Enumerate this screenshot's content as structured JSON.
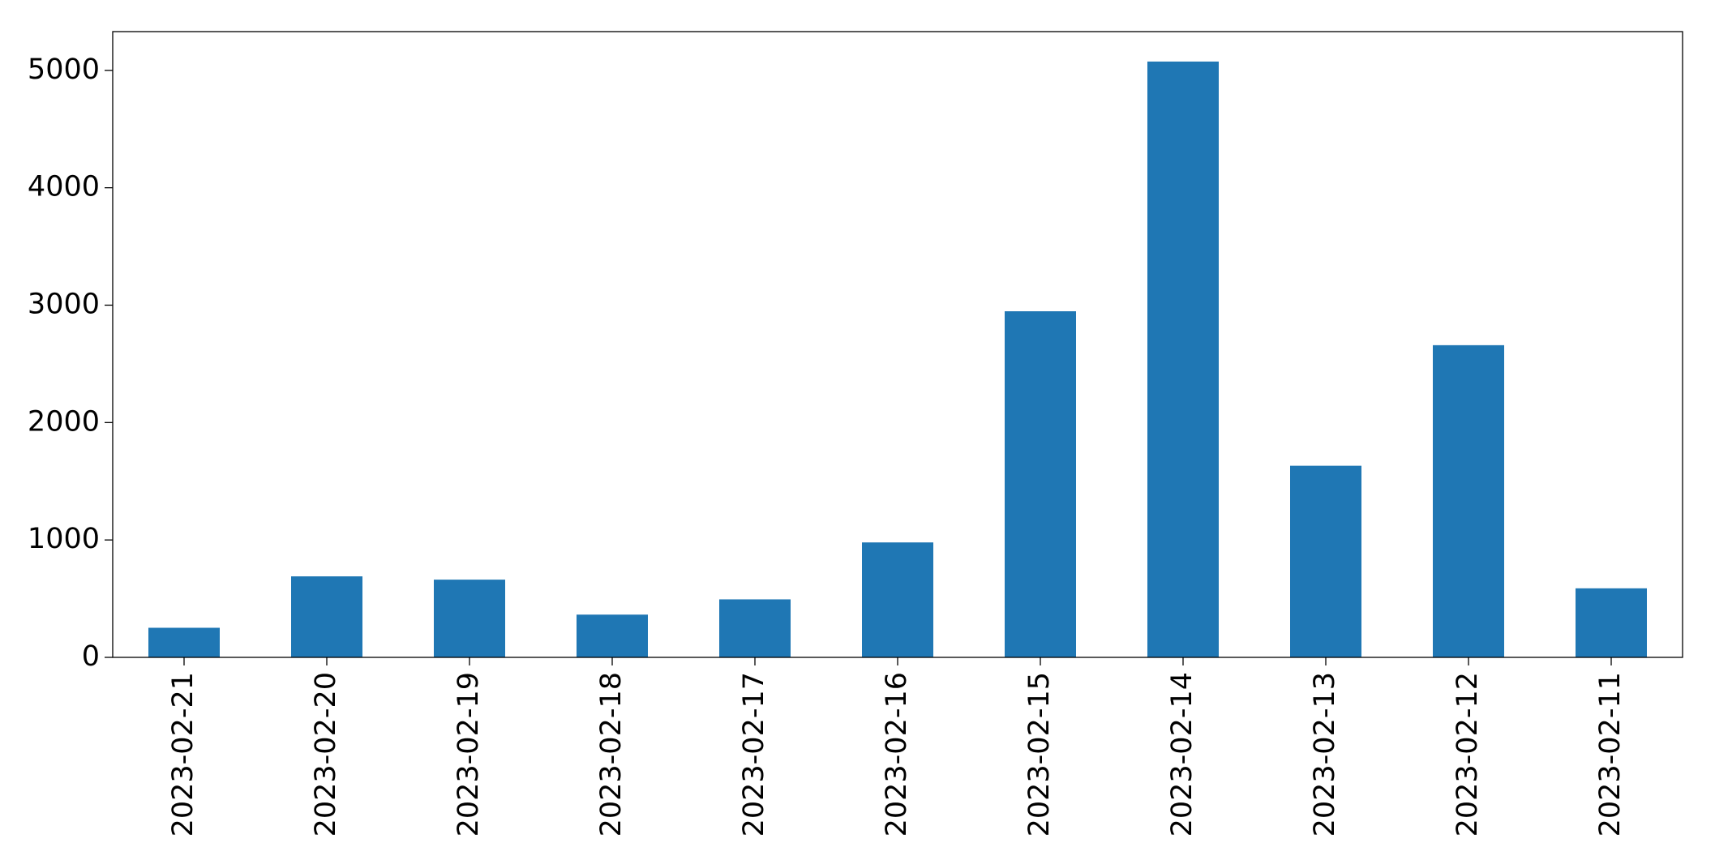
{
  "chart_data": {
    "type": "bar",
    "categories": [
      "2023-02-21",
      "2023-02-20",
      "2023-02-19",
      "2023-02-18",
      "2023-02-17",
      "2023-02-16",
      "2023-02-15",
      "2023-02-14",
      "2023-02-13",
      "2023-02-12",
      "2023-02-11"
    ],
    "values": [
      252,
      690,
      662,
      364,
      494,
      979,
      2948,
      5075,
      1632,
      2659,
      588
    ],
    "color": "#1f77b4",
    "ylim": [
      0,
      5330
    ],
    "yticks": [
      0,
      1000,
      2000,
      3000,
      4000,
      5000
    ],
    "grid": false
  }
}
